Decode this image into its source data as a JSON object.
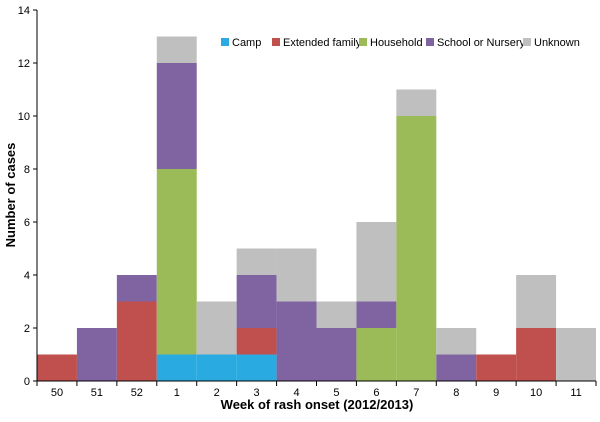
{
  "chart_data": {
    "type": "bar",
    "stacked": true,
    "title": "",
    "xlabel": "Week of rash onset (2012/2013)",
    "ylabel": "Number of cases",
    "ylim": [
      0,
      14
    ],
    "yticks": [
      0,
      2,
      4,
      6,
      8,
      10,
      12,
      14
    ],
    "grid": false,
    "legend_position": "top-right",
    "categories": [
      "50",
      "51",
      "52",
      "1",
      "2",
      "3",
      "4",
      "5",
      "6",
      "7",
      "8",
      "9",
      "10",
      "11"
    ],
    "series": [
      {
        "name": "Camp",
        "color": "#29abe2",
        "values": [
          0,
          0,
          0,
          1,
          1,
          1,
          0,
          0,
          0,
          0,
          0,
          0,
          0,
          0
        ]
      },
      {
        "name": "Extended family",
        "color": "#c0504d",
        "values": [
          1,
          0,
          3,
          0,
          0,
          1,
          0,
          0,
          0,
          0,
          0,
          1,
          2,
          0
        ]
      },
      {
        "name": "Household",
        "color": "#9bbb59",
        "values": [
          0,
          0,
          0,
          7,
          0,
          0,
          0,
          0,
          2,
          10,
          0,
          0,
          0,
          0
        ]
      },
      {
        "name": "School or Nursery",
        "color": "#8064a2",
        "values": [
          0,
          2,
          1,
          4,
          0,
          2,
          3,
          2,
          1,
          0,
          1,
          0,
          0,
          0
        ]
      },
      {
        "name": "Unknown",
        "color": "#bfbfbf",
        "values": [
          0,
          0,
          0,
          1,
          2,
          1,
          2,
          1,
          3,
          1,
          1,
          0,
          2,
          2
        ]
      }
    ]
  }
}
